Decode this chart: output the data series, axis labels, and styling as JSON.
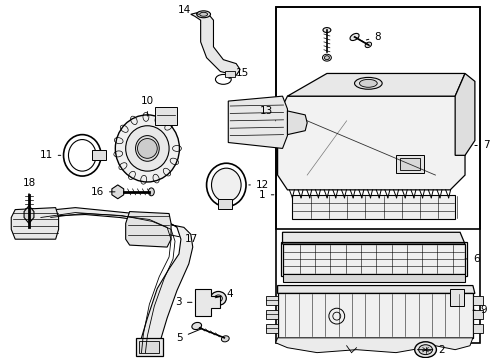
{
  "bg_color": "#ffffff",
  "line_color": "#000000",
  "text_color": "#000000",
  "figsize": [
    4.9,
    3.6
  ],
  "dpi": 100,
  "lw_main": 0.9,
  "lw_thin": 0.5,
  "fs_label": 7.5
}
